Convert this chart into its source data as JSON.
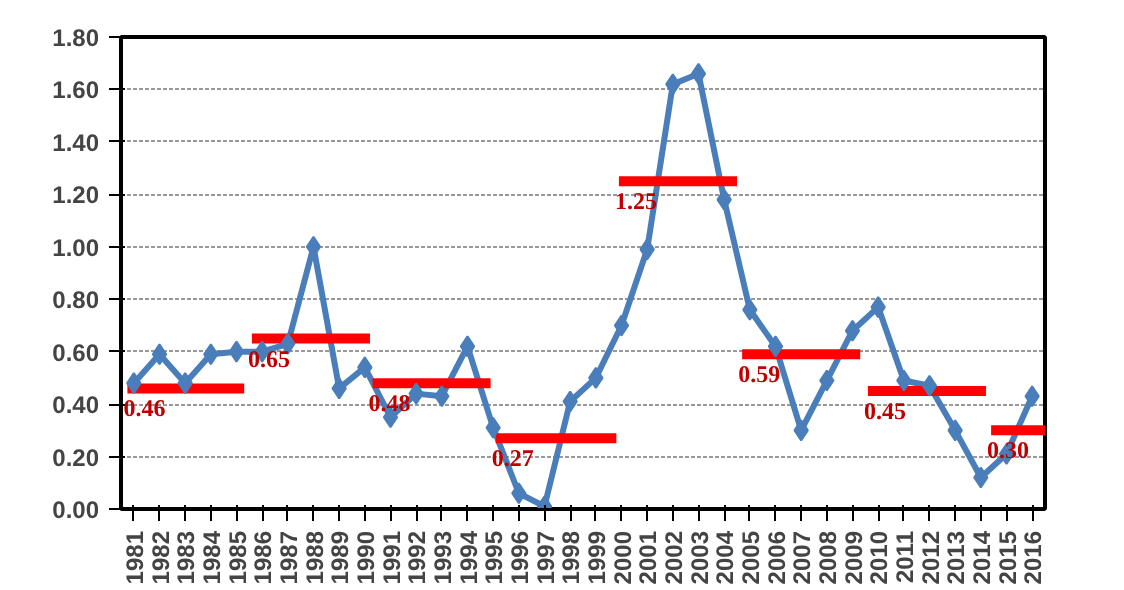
{
  "chart_data": {
    "type": "line",
    "x": [
      1981,
      1982,
      1983,
      1984,
      1985,
      1986,
      1987,
      1988,
      1989,
      1990,
      1991,
      1992,
      1993,
      1994,
      1995,
      1996,
      1997,
      1998,
      1999,
      2000,
      2001,
      2002,
      2003,
      2004,
      2005,
      2006,
      2007,
      2008,
      2009,
      2010,
      2011,
      2012,
      2013,
      2014,
      2015,
      2016
    ],
    "series": [
      {
        "color": "#4a7ebb",
        "marker": "diamond",
        "values": [
          0.48,
          0.59,
          0.48,
          0.59,
          0.6,
          0.6,
          0.63,
          1.0,
          0.46,
          0.54,
          0.35,
          0.44,
          0.43,
          0.62,
          0.31,
          0.06,
          0.01,
          0.41,
          0.5,
          0.7,
          0.99,
          1.62,
          1.66,
          1.18,
          0.76,
          0.62,
          0.3,
          0.49,
          0.68,
          0.77,
          0.49,
          0.47,
          0.3,
          0.12,
          0.21,
          0.43
        ]
      },
      {
        "color": "#ff0000",
        "marker": "none",
        "x": [
          1980.75,
          1985.3
        ],
        "values": [
          0.46,
          0.46
        ]
      },
      {
        "color": "#ff0000",
        "marker": "none",
        "x": [
          1985.6,
          1990.2
        ],
        "values": [
          0.65,
          0.65
        ]
      },
      {
        "color": "#ff0000",
        "marker": "none",
        "x": [
          1990.3,
          1994.9
        ],
        "values": [
          0.48,
          0.48
        ]
      },
      {
        "color": "#ff0000",
        "marker": "none",
        "x": [
          1995.1,
          1999.8
        ],
        "values": [
          0.27,
          0.27
        ]
      },
      {
        "color": "#ff0000",
        "marker": "none",
        "x": [
          1999.9,
          2004.5
        ],
        "values": [
          1.25,
          1.25
        ]
      },
      {
        "color": "#ff0000",
        "marker": "none",
        "x": [
          2004.7,
          2009.3
        ],
        "values": [
          0.59,
          0.59
        ]
      },
      {
        "color": "#ff0000",
        "marker": "none",
        "x": [
          2009.6,
          2014.2
        ],
        "values": [
          0.45,
          0.45
        ]
      },
      {
        "color": "#ff0000",
        "marker": "none",
        "x": [
          2014.4,
          2016.5
        ],
        "values": [
          0.3,
          0.3
        ]
      }
    ],
    "annotations": [
      {
        "text": "0.46",
        "x": 1980.75,
        "y": 0.46
      },
      {
        "text": "0.65",
        "x": 1985.6,
        "y": 0.65
      },
      {
        "text": "0.48",
        "x": 1990.3,
        "y": 0.48
      },
      {
        "text": "0.27",
        "x": 1995.1,
        "y": 0.27
      },
      {
        "text": "1.25",
        "x": 1999.9,
        "y": 1.25
      },
      {
        "text": "0.59",
        "x": 2004.7,
        "y": 0.59
      },
      {
        "text": "0.45",
        "x": 2009.6,
        "y": 0.45
      },
      {
        "text": "0.30",
        "x": 2014.4,
        "y": 0.3
      }
    ],
    "xlim": [
      1980.5,
      2016.5
    ],
    "xticks": [
      1981,
      1982,
      1983,
      1984,
      1985,
      1986,
      1987,
      1988,
      1989,
      1990,
      1991,
      1992,
      1993,
      1994,
      1995,
      1996,
      1997,
      1998,
      1999,
      2000,
      2001,
      2002,
      2003,
      2004,
      2005,
      2006,
      2007,
      2008,
      2009,
      2010,
      2011,
      2012,
      2013,
      2014,
      2015,
      2016
    ],
    "ylim": [
      0,
      1.8
    ],
    "yticks": [
      {
        "value": 0,
        "label": "0.00"
      },
      {
        "value": 0.2,
        "label": "0.20"
      },
      {
        "value": 0.4,
        "label": "0.40"
      },
      {
        "value": 0.6,
        "label": "0.60"
      },
      {
        "value": 0.8,
        "label": "0.80"
      },
      {
        "value": 1.0,
        "label": "1.00"
      },
      {
        "value": 1.2,
        "label": "1.20"
      },
      {
        "value": 1.4,
        "label": "1.40"
      },
      {
        "value": 1.6,
        "label": "1.60"
      },
      {
        "value": 1.8,
        "label": "1.80"
      }
    ],
    "grid": "y",
    "line_style": "solid"
  }
}
